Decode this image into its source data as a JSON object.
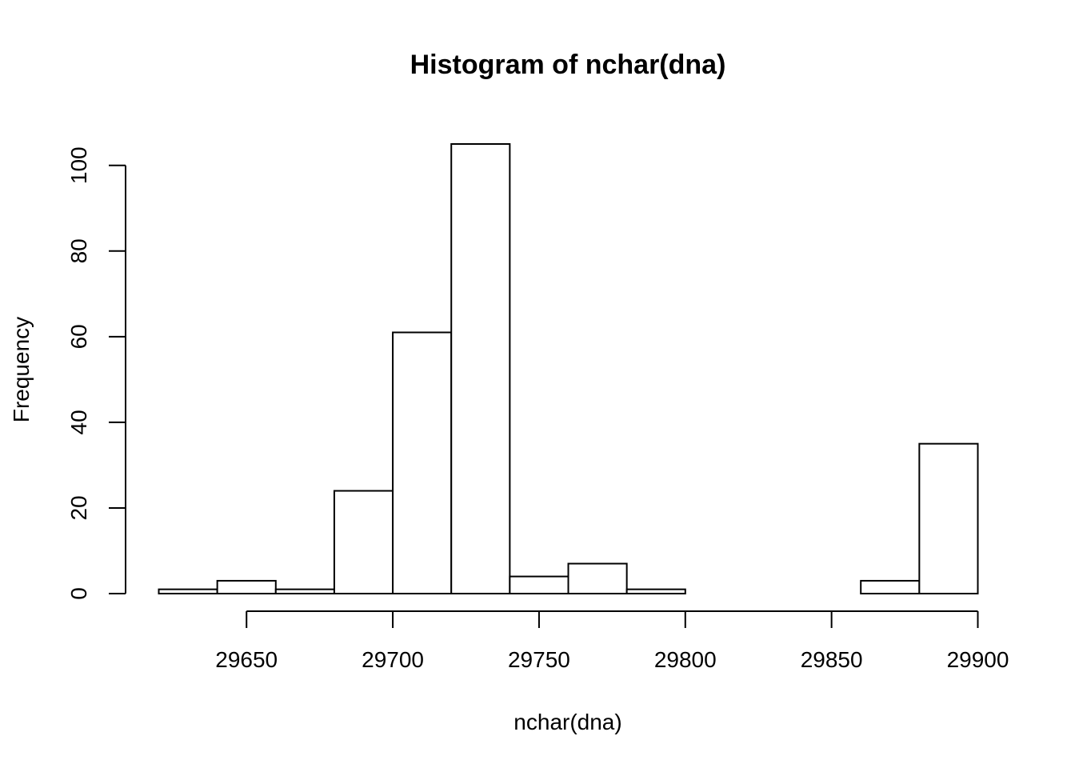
{
  "chart_data": {
    "type": "bar",
    "title": "Histogram of nchar(dna)",
    "xlabel": "nchar(dna)",
    "ylabel": "Frequency",
    "bin_width": 20,
    "bins": [
      {
        "start": 29620,
        "end": 29640,
        "count": 1
      },
      {
        "start": 29640,
        "end": 29660,
        "count": 3
      },
      {
        "start": 29660,
        "end": 29680,
        "count": 1
      },
      {
        "start": 29680,
        "end": 29700,
        "count": 24
      },
      {
        "start": 29700,
        "end": 29720,
        "count": 61
      },
      {
        "start": 29720,
        "end": 29740,
        "count": 105
      },
      {
        "start": 29740,
        "end": 29760,
        "count": 4
      },
      {
        "start": 29760,
        "end": 29780,
        "count": 7
      },
      {
        "start": 29780,
        "end": 29800,
        "count": 1
      },
      {
        "start": 29800,
        "end": 29820,
        "count": 0
      },
      {
        "start": 29820,
        "end": 29840,
        "count": 0
      },
      {
        "start": 29840,
        "end": 29860,
        "count": 0
      },
      {
        "start": 29860,
        "end": 29880,
        "count": 3
      },
      {
        "start": 29880,
        "end": 29900,
        "count": 35
      }
    ],
    "xlim": [
      29620,
      29900
    ],
    "ylim": [
      0,
      105
    ],
    "x_ticks": [
      29650,
      29700,
      29750,
      29800,
      29850,
      29900
    ],
    "x_tick_labels": [
      "29650",
      "29700",
      "29750",
      "29800",
      "29850",
      "29900"
    ],
    "y_ticks": [
      0,
      20,
      40,
      60,
      80,
      100
    ],
    "y_tick_labels": [
      "0",
      "20",
      "40",
      "60",
      "80",
      "100"
    ],
    "grid": false,
    "legend": "none"
  }
}
